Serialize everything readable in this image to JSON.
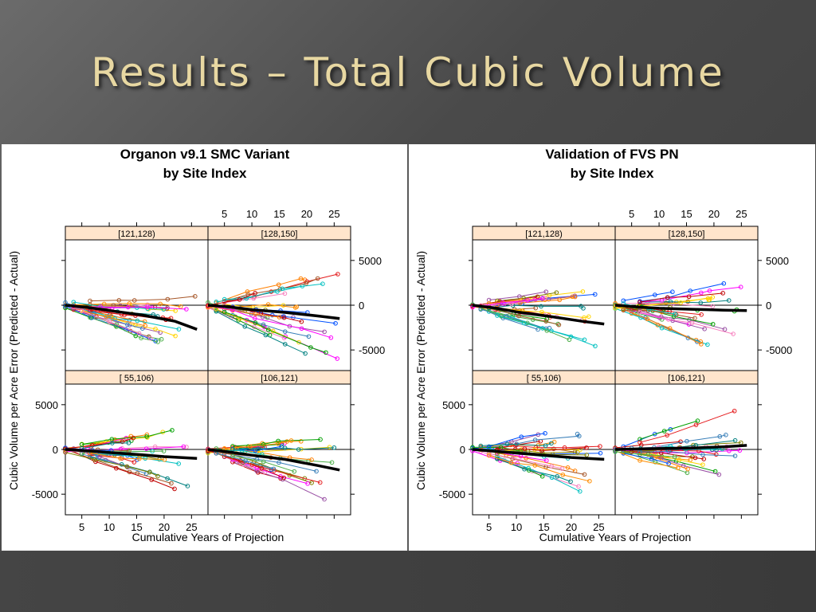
{
  "slide": {
    "title": "Results – Total Cubic Volume"
  },
  "chart_data": [
    {
      "type": "line",
      "title_line1": "Organon v9.1 SMC Variant",
      "title_line2": "by Site Index",
      "xlabel": "Cumulative Years of Projection",
      "ylabel": "Cubic Volume per Acre Error (Predicted - Actual)",
      "xlim": [
        2,
        28
      ],
      "ylim": [
        -7300,
        7300
      ],
      "xticks": [
        5,
        10,
        15,
        20,
        25
      ],
      "yticks": [
        5000,
        0,
        -5000
      ],
      "yticklabels": [
        "5000",
        "0",
        "-5000"
      ],
      "panels": [
        {
          "label": "[121,128)",
          "row": 0,
          "col": 0,
          "mean": [
            [
              2,
              0
            ],
            [
              6,
              -250
            ],
            [
              10,
              -600
            ],
            [
              16,
              -1100
            ],
            [
              22,
              -1800
            ],
            [
              26,
              -2700
            ]
          ],
          "spread": 1800
        },
        {
          "label": "[128,150]",
          "row": 0,
          "col": 1,
          "mean": [
            [
              2,
              0
            ],
            [
              6,
              -200
            ],
            [
              10,
              -500
            ],
            [
              16,
              -800
            ],
            [
              22,
              -1200
            ],
            [
              26,
              -1500
            ]
          ],
          "spread": 2800
        },
        {
          "label": "[ 55,106)",
          "row": 1,
          "col": 0,
          "mean": [
            [
              2,
              0
            ],
            [
              6,
              -150
            ],
            [
              10,
              -350
            ],
            [
              16,
              -600
            ],
            [
              20,
              -800
            ],
            [
              26,
              -1000
            ]
          ],
          "spread": 2200
        },
        {
          "label": "[106,121)",
          "row": 1,
          "col": 1,
          "mean": [
            [
              2,
              0
            ],
            [
              6,
              -300
            ],
            [
              10,
              -650
            ],
            [
              16,
              -1100
            ],
            [
              22,
              -1800
            ],
            [
              26,
              -2300
            ]
          ],
          "spread": 2200
        }
      ]
    },
    {
      "type": "line",
      "title_line1": "Validation of FVS PN",
      "title_line2": "by Site Index",
      "xlabel": "Cumulative Years of Projection",
      "ylabel": "Cubic Volume per Acre Error (Predicted - Actual)",
      "xlim": [
        2,
        28
      ],
      "ylim": [
        -7300,
        7300
      ],
      "xticks": [
        5,
        10,
        15,
        20,
        25
      ],
      "yticks": [
        5000,
        0,
        -5000
      ],
      "yticklabels": [
        "5000",
        "0",
        "-5000"
      ],
      "panels": [
        {
          "label": "[121,128)",
          "row": 0,
          "col": 0,
          "mean": [
            [
              2,
              0
            ],
            [
              6,
              -300
            ],
            [
              10,
              -750
            ],
            [
              16,
              -1250
            ],
            [
              22,
              -1800
            ],
            [
              26,
              -2100
            ]
          ],
          "spread": 2200
        },
        {
          "label": "[128,150]",
          "row": 0,
          "col": 1,
          "mean": [
            [
              2,
              0
            ],
            [
              6,
              -200
            ],
            [
              10,
              -350
            ],
            [
              16,
              -450
            ],
            [
              22,
              -550
            ],
            [
              26,
              -600
            ]
          ],
          "spread": 3000
        },
        {
          "label": "[ 55,106)",
          "row": 1,
          "col": 0,
          "mean": [
            [
              2,
              0
            ],
            [
              6,
              -200
            ],
            [
              10,
              -400
            ],
            [
              16,
              -700
            ],
            [
              20,
              -900
            ],
            [
              26,
              -1100
            ]
          ],
          "spread": 2600
        },
        {
          "label": "[106,121)",
          "row": 1,
          "col": 1,
          "mean": [
            [
              2,
              0
            ],
            [
              6,
              50
            ],
            [
              10,
              100
            ],
            [
              16,
              150
            ],
            [
              22,
              300
            ],
            [
              26,
              450
            ]
          ],
          "spread": 2600
        }
      ]
    }
  ]
}
